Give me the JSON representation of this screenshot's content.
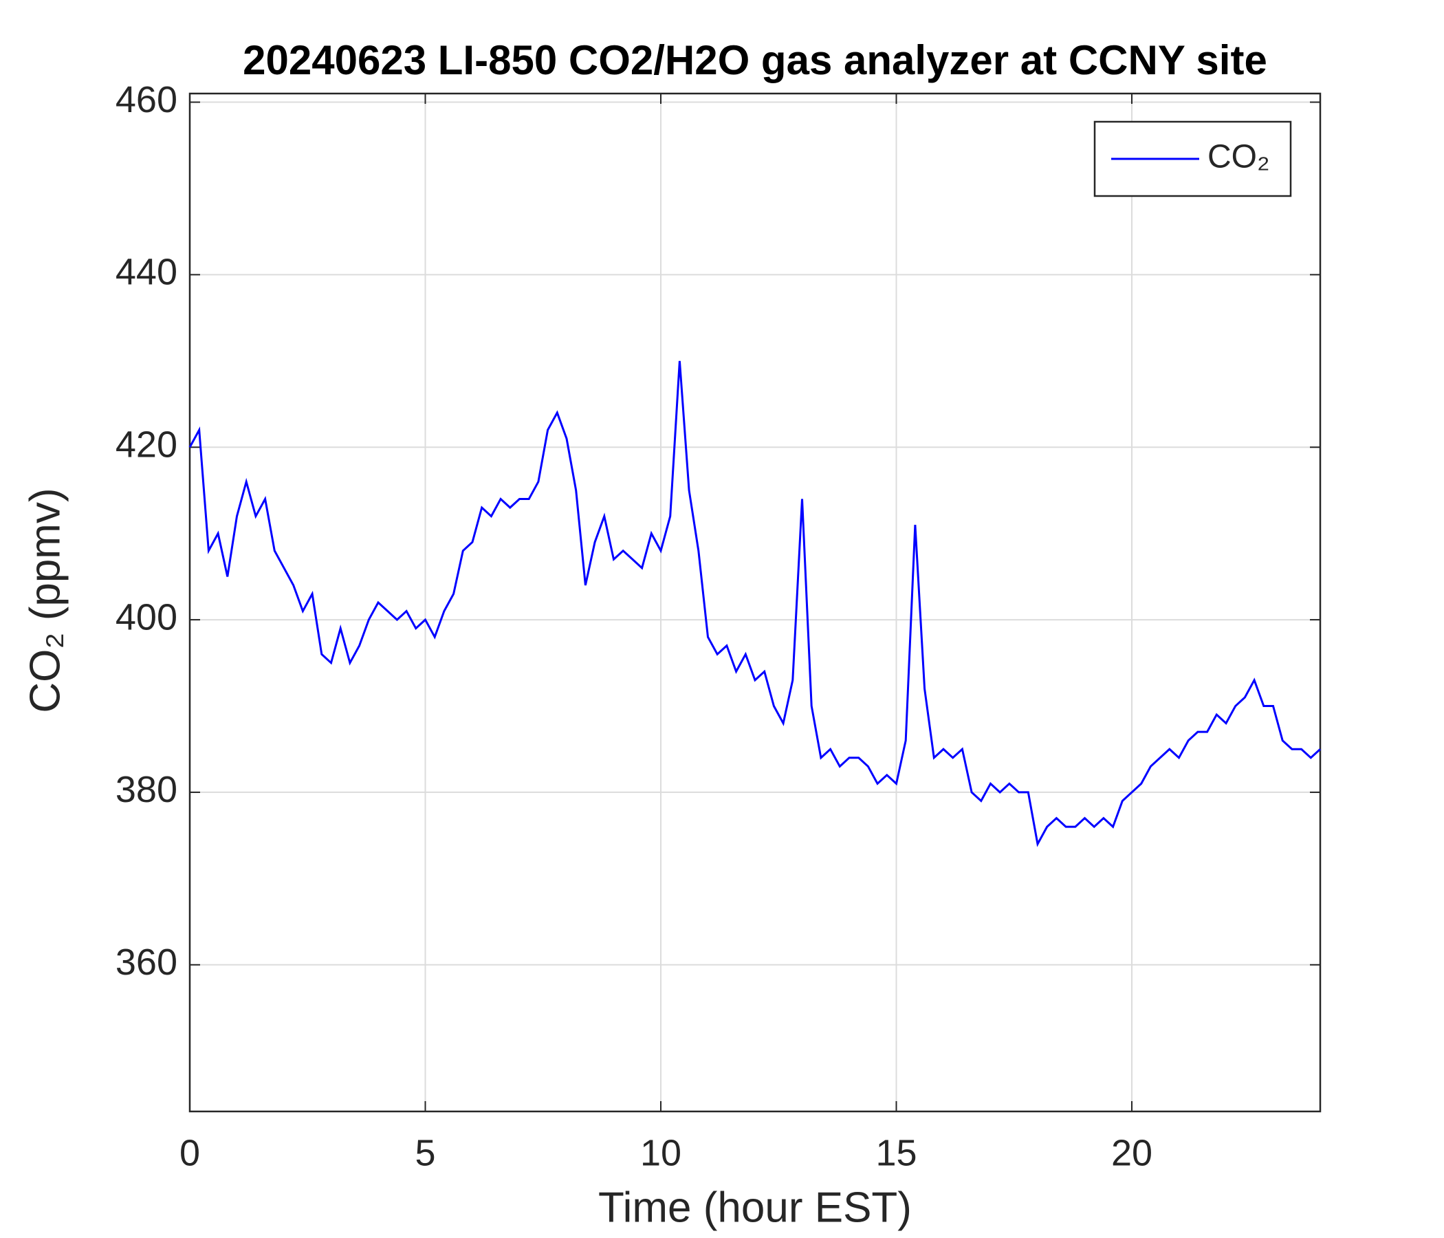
{
  "chart_data": {
    "type": "line",
    "title": "20240623 LI-850 CO2/H2O gas analyzer at CCNY site",
    "x_label": "Time (hour EST)",
    "y_label": "CO₂ (ppmv)",
    "xlim": [
      0,
      24
    ],
    "xticks": [
      0,
      5,
      10,
      15,
      20
    ],
    "ylim": [
      343,
      461
    ],
    "yticks": [
      360,
      380,
      400,
      420,
      440,
      460
    ],
    "grid": true,
    "legend": "upper right",
    "x": [
      0,
      0.2,
      0.4,
      0.6,
      0.8,
      1.0,
      1.2,
      1.4,
      1.6,
      1.8,
      2.0,
      2.2,
      2.4,
      2.6,
      2.8,
      3.0,
      3.2,
      3.4,
      3.6,
      3.8,
      4.0,
      4.2,
      4.4,
      4.6,
      4.8,
      5.0,
      5.2,
      5.4,
      5.6,
      5.8,
      6.0,
      6.2,
      6.4,
      6.6,
      6.8,
      7.0,
      7.2,
      7.4,
      7.6,
      7.8,
      8.0,
      8.2,
      8.4,
      8.6,
      8.8,
      9.0,
      9.2,
      9.4,
      9.6,
      9.8,
      10.0,
      10.2,
      10.4,
      10.6,
      10.8,
      11.0,
      11.2,
      11.4,
      11.6,
      11.8,
      12.0,
      12.2,
      12.4,
      12.6,
      12.8,
      13.0,
      13.2,
      13.4,
      13.6,
      13.8,
      14.0,
      14.2,
      14.4,
      14.6,
      14.8,
      15.0,
      15.2,
      15.4,
      15.6,
      15.8,
      16.0,
      16.2,
      16.4,
      16.6,
      16.8,
      17.0,
      17.2,
      17.4,
      17.6,
      17.8,
      18.0,
      18.2,
      18.4,
      18.6,
      18.8,
      19.0,
      19.2,
      19.4,
      19.6,
      19.8,
      20.0,
      20.2,
      20.4,
      20.6,
      20.8,
      21.0,
      21.2,
      21.4,
      21.6,
      21.8,
      22.0,
      22.2,
      22.4,
      22.6,
      22.8,
      23.0,
      23.2,
      23.4,
      23.6,
      23.8,
      24.0
    ],
    "series": [
      {
        "name": "CO₂",
        "color": "#0000ff",
        "values": [
          420,
          422,
          408,
          410,
          405,
          412,
          416,
          412,
          414,
          408,
          406,
          404,
          401,
          403,
          396,
          395,
          399,
          395,
          397,
          400,
          402,
          401,
          400,
          401,
          399,
          400,
          398,
          401,
          403,
          408,
          409,
          413,
          412,
          414,
          413,
          414,
          414,
          416,
          422,
          424,
          421,
          415,
          404,
          409,
          412,
          407,
          408,
          407,
          406,
          410,
          408,
          412,
          430,
          415,
          408,
          398,
          396,
          397,
          394,
          396,
          393,
          394,
          390,
          388,
          393,
          414,
          390,
          384,
          385,
          383,
          384,
          384,
          383,
          381,
          382,
          381,
          386,
          411,
          392,
          384,
          385,
          384,
          385,
          380,
          379,
          381,
          380,
          381,
          380,
          380,
          374,
          376,
          377,
          376,
          376,
          377,
          376,
          377,
          376,
          379,
          380,
          381,
          383,
          384,
          385,
          384,
          386,
          387,
          387,
          389,
          388,
          390,
          391,
          393,
          390,
          390,
          386,
          385,
          385,
          384,
          385
        ]
      }
    ]
  }
}
